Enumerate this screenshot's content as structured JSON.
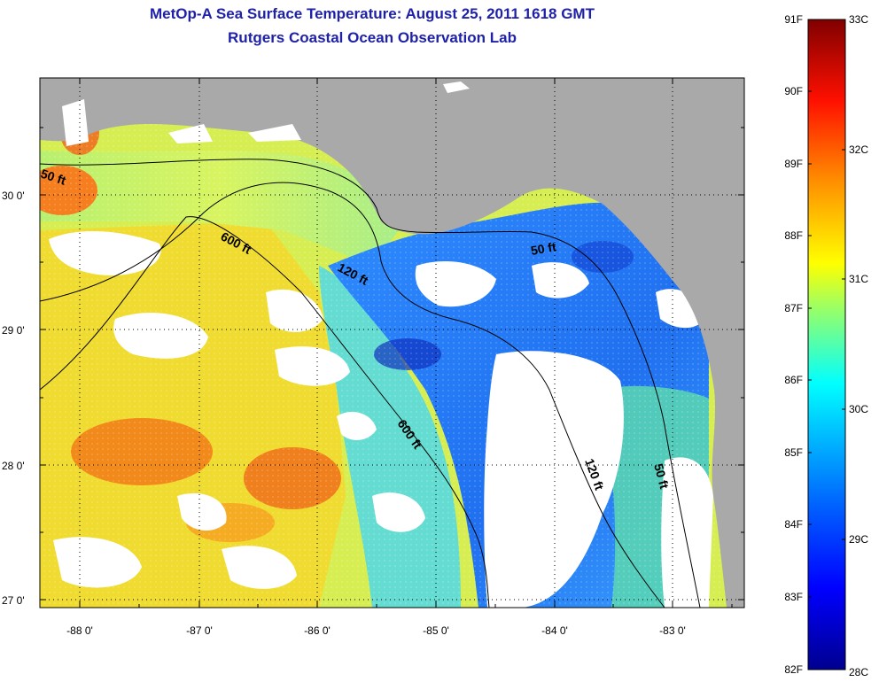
{
  "header": {
    "title": "MetOp-A Sea Surface Temperature:  August 25, 2011 1618 GMT",
    "subtitle": "Rutgers Coastal Ocean Observation Lab"
  },
  "map": {
    "lat_ticks": [
      "30 0'",
      "29 0'",
      "28 0'",
      "27 0'"
    ],
    "lon_ticks": [
      "-88 0'",
      "-87 0'",
      "-86 0'",
      "-85 0'",
      "-84 0'",
      "-83 0'"
    ],
    "contour_labels": [
      "50 ft",
      "600 ft",
      "120 ft",
      "50 ft",
      "600 ft",
      "120 ft",
      "50 ft"
    ],
    "colors": {
      "land": "#a9a9a9",
      "cloud": "#ffffff",
      "contour": "#000000"
    }
  },
  "colorbar": {
    "f_labels": [
      "91F",
      "90F",
      "89F",
      "88F",
      "87F",
      "86F",
      "85F",
      "84F",
      "83F",
      "82F"
    ],
    "c_labels": [
      "33C",
      "32C",
      "31C",
      "30C",
      "29C",
      "28C"
    ],
    "colormap": [
      "#00008f",
      "#0000ff",
      "#0080ff",
      "#00ffff",
      "#80ff80",
      "#ffff00",
      "#ff8000",
      "#ff0000",
      "#800000"
    ]
  }
}
